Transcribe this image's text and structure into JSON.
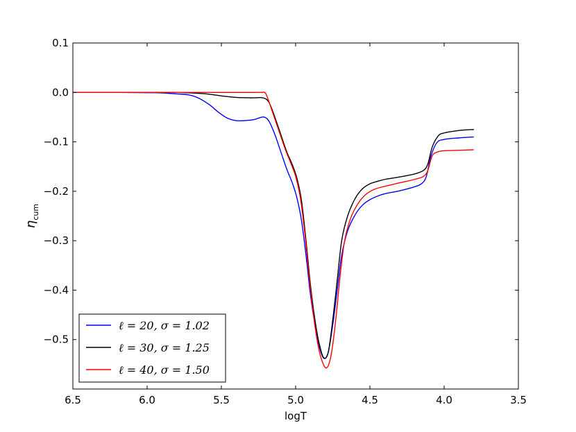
{
  "chart_data": {
    "type": "line",
    "title": "",
    "xlabel": "logT",
    "ylabel": "η_cum",
    "xlim": [
      6.5,
      3.5
    ],
    "ylim": [
      -0.6,
      0.1
    ],
    "x_inverted": true,
    "grid": false,
    "legend_position": "lower-left",
    "xticks": [
      6.5,
      6.0,
      5.5,
      5.0,
      4.5,
      4.0,
      3.5
    ],
    "xtick_labels": [
      "6.5",
      "6.0",
      "5.5",
      "5.0",
      "4.5",
      "4.0",
      "3.5"
    ],
    "yticks": [
      0.1,
      0.0,
      -0.1,
      -0.2,
      -0.3,
      -0.4,
      -0.5
    ],
    "ytick_labels": [
      "0.1",
      "0.0",
      "−0.1",
      "−0.2",
      "−0.3",
      "−0.4",
      "−0.5"
    ],
    "series": [
      {
        "name": "ℓ = 20, σ = 1.02",
        "color": "#0000ff",
        "points": [
          [
            6.5,
            0.0
          ],
          [
            6.2,
            0.0
          ],
          [
            6.0,
            -0.0005
          ],
          [
            5.9,
            -0.001
          ],
          [
            5.8,
            -0.003
          ],
          [
            5.72,
            -0.005
          ],
          [
            5.65,
            -0.012
          ],
          [
            5.58,
            -0.025
          ],
          [
            5.52,
            -0.04
          ],
          [
            5.46,
            -0.052
          ],
          [
            5.4,
            -0.057
          ],
          [
            5.34,
            -0.057
          ],
          [
            5.28,
            -0.055
          ],
          [
            5.24,
            -0.051
          ],
          [
            5.21,
            -0.05
          ],
          [
            5.18,
            -0.058
          ],
          [
            5.14,
            -0.085
          ],
          [
            5.1,
            -0.12
          ],
          [
            5.06,
            -0.155
          ],
          [
            5.02,
            -0.185
          ],
          [
            4.99,
            -0.215
          ],
          [
            4.96,
            -0.26
          ],
          [
            4.93,
            -0.33
          ],
          [
            4.9,
            -0.41
          ],
          [
            4.87,
            -0.47
          ],
          [
            4.84,
            -0.515
          ],
          [
            4.81,
            -0.538
          ],
          [
            4.78,
            -0.525
          ],
          [
            4.75,
            -0.47
          ],
          [
            4.72,
            -0.4
          ],
          [
            4.69,
            -0.33
          ],
          [
            4.65,
            -0.28
          ],
          [
            4.6,
            -0.248
          ],
          [
            4.55,
            -0.228
          ],
          [
            4.5,
            -0.217
          ],
          [
            4.45,
            -0.21
          ],
          [
            4.4,
            -0.205
          ],
          [
            4.3,
            -0.199
          ],
          [
            4.2,
            -0.191
          ],
          [
            4.15,
            -0.184
          ],
          [
            4.12,
            -0.17
          ],
          [
            4.09,
            -0.13
          ],
          [
            4.05,
            -0.102
          ],
          [
            4.0,
            -0.095
          ],
          [
            3.9,
            -0.092
          ],
          [
            3.8,
            -0.09
          ]
        ]
      },
      {
        "name": "ℓ = 30, σ = 1.25",
        "color": "#000000",
        "points": [
          [
            6.5,
            0.0
          ],
          [
            6.0,
            0.0
          ],
          [
            5.8,
            0.0
          ],
          [
            5.7,
            -0.001
          ],
          [
            5.6,
            -0.003
          ],
          [
            5.5,
            -0.007
          ],
          [
            5.4,
            -0.01
          ],
          [
            5.3,
            -0.011
          ],
          [
            5.22,
            -0.011
          ],
          [
            5.18,
            -0.02
          ],
          [
            5.14,
            -0.05
          ],
          [
            5.1,
            -0.085
          ],
          [
            5.06,
            -0.12
          ],
          [
            5.02,
            -0.148
          ],
          [
            4.99,
            -0.175
          ],
          [
            4.96,
            -0.22
          ],
          [
            4.93,
            -0.3
          ],
          [
            4.9,
            -0.39
          ],
          [
            4.87,
            -0.46
          ],
          [
            4.84,
            -0.51
          ],
          [
            4.81,
            -0.537
          ],
          [
            4.78,
            -0.525
          ],
          [
            4.75,
            -0.46
          ],
          [
            4.72,
            -0.38
          ],
          [
            4.69,
            -0.3
          ],
          [
            4.65,
            -0.25
          ],
          [
            4.6,
            -0.215
          ],
          [
            4.55,
            -0.195
          ],
          [
            4.5,
            -0.185
          ],
          [
            4.45,
            -0.18
          ],
          [
            4.4,
            -0.176
          ],
          [
            4.3,
            -0.171
          ],
          [
            4.2,
            -0.165
          ],
          [
            4.14,
            -0.158
          ],
          [
            4.11,
            -0.145
          ],
          [
            4.08,
            -0.11
          ],
          [
            4.04,
            -0.088
          ],
          [
            4.0,
            -0.082
          ],
          [
            3.9,
            -0.077
          ],
          [
            3.8,
            -0.075
          ]
        ]
      },
      {
        "name": "ℓ = 40, σ = 1.50",
        "color": "#ff0000",
        "points": [
          [
            6.5,
            0.0
          ],
          [
            6.0,
            0.0
          ],
          [
            5.5,
            0.0
          ],
          [
            5.25,
            0.0
          ],
          [
            5.21,
            0.0
          ],
          [
            5.19,
            -0.01
          ],
          [
            5.15,
            -0.045
          ],
          [
            5.11,
            -0.08
          ],
          [
            5.07,
            -0.115
          ],
          [
            5.03,
            -0.145
          ],
          [
            5.0,
            -0.17
          ],
          [
            4.97,
            -0.21
          ],
          [
            4.94,
            -0.28
          ],
          [
            4.91,
            -0.37
          ],
          [
            4.88,
            -0.45
          ],
          [
            4.85,
            -0.51
          ],
          [
            4.82,
            -0.545
          ],
          [
            4.79,
            -0.557
          ],
          [
            4.76,
            -0.53
          ],
          [
            4.73,
            -0.46
          ],
          [
            4.7,
            -0.37
          ],
          [
            4.67,
            -0.3
          ],
          [
            4.63,
            -0.255
          ],
          [
            4.58,
            -0.225
          ],
          [
            4.53,
            -0.207
          ],
          [
            4.47,
            -0.196
          ],
          [
            4.4,
            -0.19
          ],
          [
            4.3,
            -0.183
          ],
          [
            4.2,
            -0.176
          ],
          [
            4.14,
            -0.17
          ],
          [
            4.11,
            -0.158
          ],
          [
            4.08,
            -0.128
          ],
          [
            4.04,
            -0.12
          ],
          [
            4.0,
            -0.118
          ],
          [
            3.9,
            -0.117
          ],
          [
            3.8,
            -0.116
          ]
        ]
      }
    ]
  }
}
